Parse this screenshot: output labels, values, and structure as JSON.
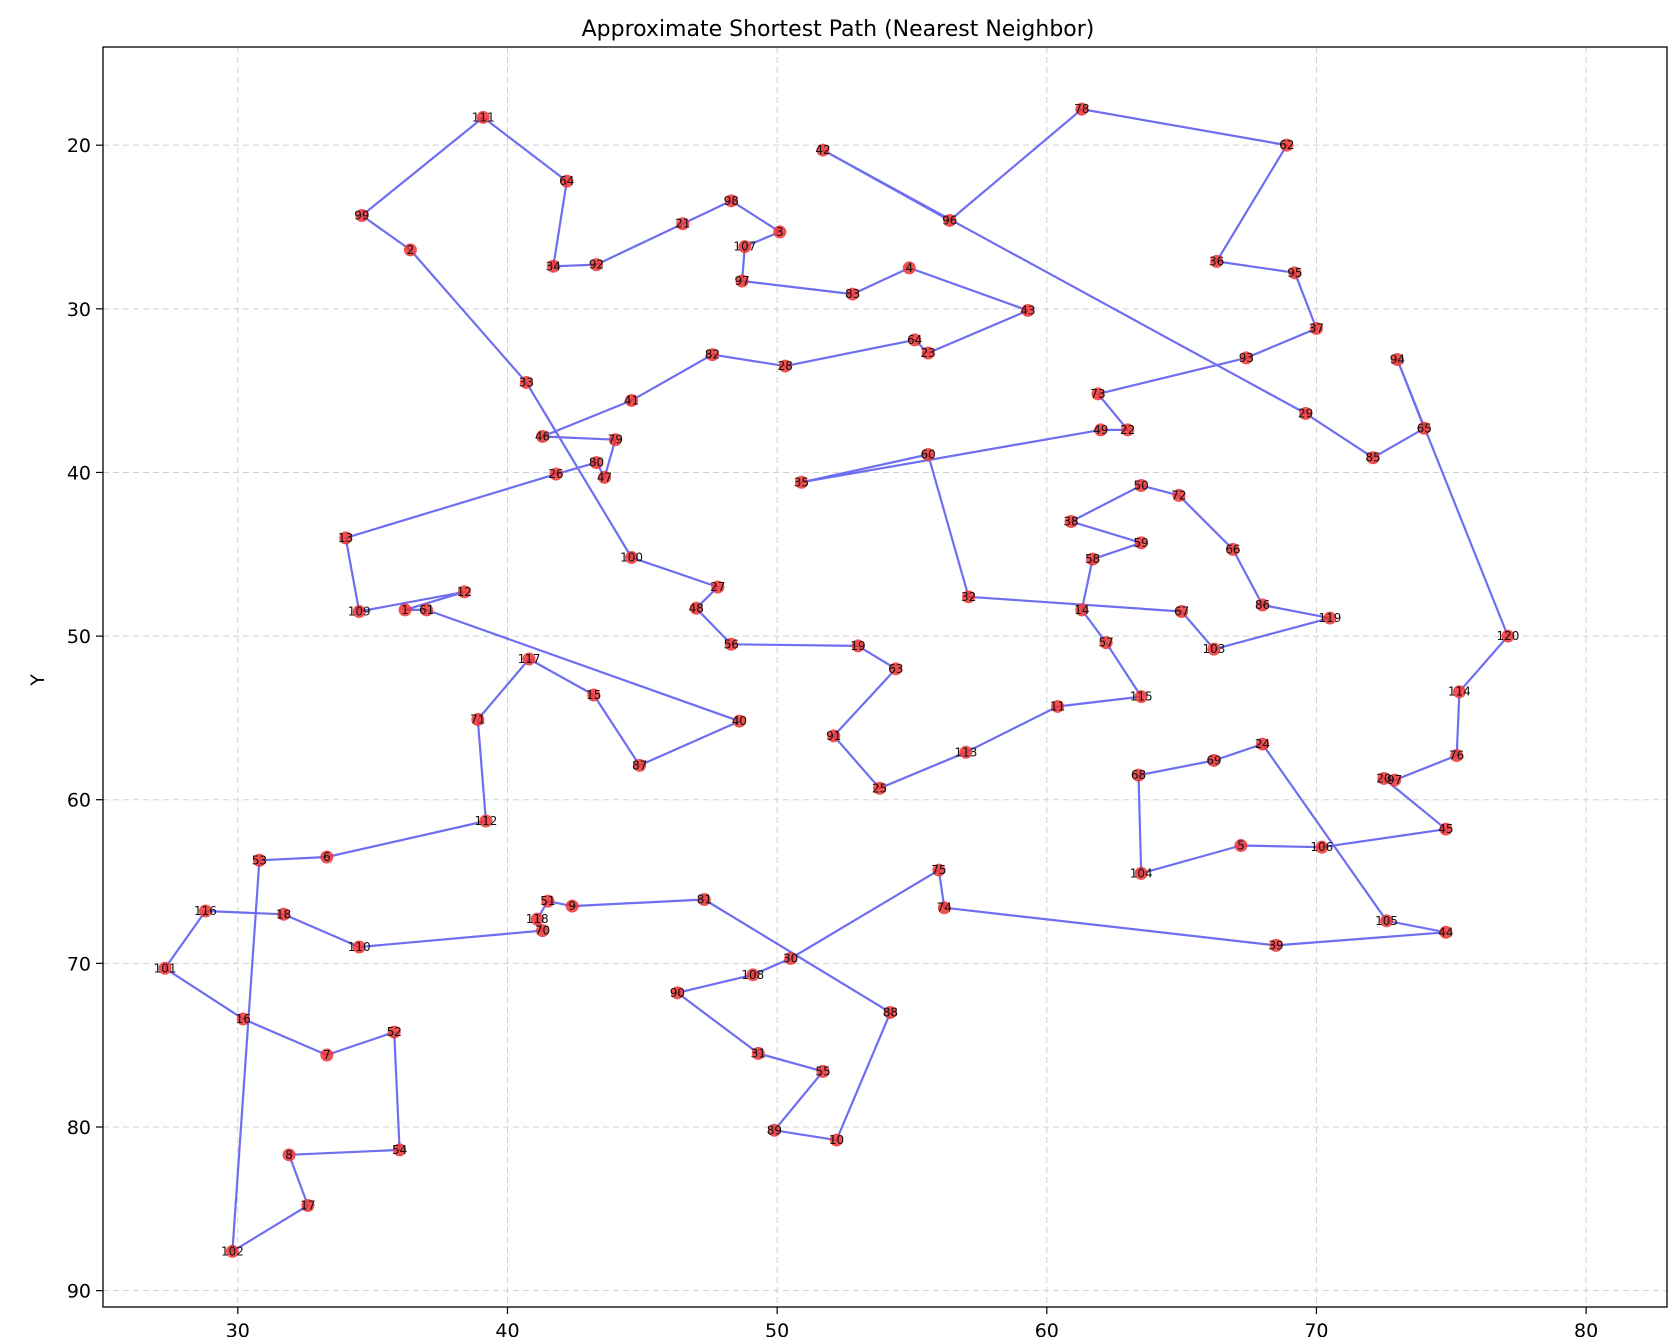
{
  "chart_data": {
    "type": "line",
    "title": "Approximate Shortest Path (Nearest Neighbor)",
    "xlabel": "",
    "ylabel": "Y",
    "xlim": [
      25,
      83
    ],
    "ylim": [
      91,
      14
    ],
    "y_inverted": true,
    "xticks": [
      30,
      40,
      50,
      60,
      70,
      80
    ],
    "yticks": [
      20,
      30,
      40,
      50,
      60,
      70,
      80,
      90
    ],
    "grid": true,
    "colors": {
      "path": "#5555ee",
      "point": "#ee3333",
      "grid": "#d0d0d0"
    },
    "points": [
      {
        "id": 111,
        "x": 39.1,
        "y": 18.3
      },
      {
        "id": 99,
        "x": 34.6,
        "y": 24.3
      },
      {
        "id": 2,
        "x": 36.4,
        "y": 26.4
      },
      {
        "id": 33,
        "x": 40.7,
        "y": 34.5
      },
      {
        "id": 100,
        "x": 44.6,
        "y": 45.2
      },
      {
        "id": 27,
        "x": 47.8,
        "y": 47.0
      },
      {
        "id": 48,
        "x": 47.0,
        "y": 48.3
      },
      {
        "id": 56,
        "x": 48.3,
        "y": 50.5
      },
      {
        "id": 19,
        "x": 53.0,
        "y": 50.6
      },
      {
        "id": 63,
        "x": 54.4,
        "y": 52.0
      },
      {
        "id": 91,
        "x": 52.1,
        "y": 56.1
      },
      {
        "id": 25,
        "x": 53.8,
        "y": 59.3
      },
      {
        "id": 113,
        "x": 57.0,
        "y": 57.1
      },
      {
        "id": 11,
        "x": 60.4,
        "y": 54.3
      },
      {
        "id": 115,
        "x": 63.5,
        "y": 53.7
      },
      {
        "id": 57,
        "x": 62.2,
        "y": 50.4
      },
      {
        "id": 14,
        "x": 61.3,
        "y": 48.4
      },
      {
        "id": 58,
        "x": 61.7,
        "y": 45.3
      },
      {
        "id": 59,
        "x": 63.5,
        "y": 44.3
      },
      {
        "id": 38,
        "x": 60.9,
        "y": 43.0
      },
      {
        "id": 50,
        "x": 63.5,
        "y": 40.8
      },
      {
        "id": 72,
        "x": 64.9,
        "y": 41.4
      },
      {
        "id": 66,
        "x": 66.9,
        "y": 44.7
      },
      {
        "id": 86,
        "x": 68.0,
        "y": 48.1
      },
      {
        "id": 119,
        "x": 70.5,
        "y": 48.9
      },
      {
        "id": 103,
        "x": 66.2,
        "y": 50.8
      },
      {
        "id": 67,
        "x": 65.0,
        "y": 48.5
      },
      {
        "id": 32,
        "x": 57.1,
        "y": 47.6
      },
      {
        "id": 60,
        "x": 55.6,
        "y": 38.9
      },
      {
        "id": 35,
        "x": 50.9,
        "y": 40.6
      },
      {
        "id": 49,
        "x": 62.0,
        "y": 37.4
      },
      {
        "id": 22,
        "x": 63.0,
        "y": 37.4
      },
      {
        "id": 73,
        "x": 61.9,
        "y": 35.2
      },
      {
        "id": 93,
        "x": 67.4,
        "y": 33.0
      },
      {
        "id": 37,
        "x": 70.0,
        "y": 31.2
      },
      {
        "id": 95,
        "x": 69.2,
        "y": 27.8
      },
      {
        "id": 36,
        "x": 66.3,
        "y": 27.1
      },
      {
        "id": 62,
        "x": 68.9,
        "y": 20.0
      },
      {
        "id": 78,
        "x": 61.3,
        "y": 17.8
      },
      {
        "id": 96,
        "x": 56.4,
        "y": 24.6
      },
      {
        "id": 42,
        "x": 51.7,
        "y": 20.3
      },
      {
        "id": 29,
        "x": 69.6,
        "y": 36.4
      },
      {
        "id": 85,
        "x": 72.1,
        "y": 39.1
      },
      {
        "id": 65,
        "x": 74.0,
        "y": 37.3
      },
      {
        "id": 94,
        "x": 73.0,
        "y": 33.1
      },
      {
        "id": 120,
        "x": 77.1,
        "y": 50.0
      },
      {
        "id": 114,
        "x": 75.3,
        "y": 53.4
      },
      {
        "id": 76,
        "x": 75.2,
        "y": 57.3
      },
      {
        "id": 97,
        "x": 72.9,
        "y": 58.8
      },
      {
        "id": 20,
        "x": 72.5,
        "y": 58.7
      },
      {
        "id": 45,
        "x": 74.8,
        "y": 61.8
      },
      {
        "id": 106,
        "x": 70.2,
        "y": 62.9
      },
      {
        "id": 5,
        "x": 67.2,
        "y": 62.8
      },
      {
        "id": 104,
        "x": 63.5,
        "y": 64.5
      },
      {
        "id": 68,
        "x": 63.4,
        "y": 58.5
      },
      {
        "id": 69,
        "x": 66.2,
        "y": 57.6
      },
      {
        "id": 24,
        "x": 68.0,
        "y": 56.6
      },
      {
        "id": 105,
        "x": 72.6,
        "y": 67.4
      },
      {
        "id": 44,
        "x": 74.8,
        "y": 68.1
      },
      {
        "id": 39,
        "x": 68.5,
        "y": 68.9
      },
      {
        "id": 74,
        "x": 56.2,
        "y": 66.6
      },
      {
        "id": 75,
        "x": 56.0,
        "y": 64.3
      },
      {
        "id": 30,
        "x": 50.5,
        "y": 69.7
      },
      {
        "id": 108,
        "x": 49.1,
        "y": 70.7
      },
      {
        "id": 90,
        "x": 46.3,
        "y": 71.8
      },
      {
        "id": 31,
        "x": 49.3,
        "y": 75.5
      },
      {
        "id": 55,
        "x": 51.7,
        "y": 76.6
      },
      {
        "id": 89,
        "x": 49.9,
        "y": 80.2
      },
      {
        "id": 10,
        "x": 52.2,
        "y": 80.8
      },
      {
        "id": 88,
        "x": 54.2,
        "y": 73.0
      },
      {
        "id": 81,
        "x": 47.3,
        "y": 66.1
      },
      {
        "id": 9,
        "x": 42.4,
        "y": 66.5
      },
      {
        "id": 51,
        "x": 41.5,
        "y": 66.2
      },
      {
        "id": 118,
        "x": 41.1,
        "y": 67.3
      },
      {
        "id": 70,
        "x": 41.3,
        "y": 68.0
      },
      {
        "id": 110,
        "x": 34.5,
        "y": 69.0
      },
      {
        "id": 18,
        "x": 31.7,
        "y": 67.0
      },
      {
        "id": 116,
        "x": 28.8,
        "y": 66.8
      },
      {
        "id": 101,
        "x": 27.3,
        "y": 70.3
      },
      {
        "id": 16,
        "x": 30.2,
        "y": 73.4
      },
      {
        "id": 7,
        "x": 33.3,
        "y": 75.6
      },
      {
        "id": 52,
        "x": 35.8,
        "y": 74.2
      },
      {
        "id": 54,
        "x": 36.0,
        "y": 81.4
      },
      {
        "id": 8,
        "x": 31.9,
        "y": 81.7
      },
      {
        "id": 17,
        "x": 32.6,
        "y": 84.8
      },
      {
        "id": 102,
        "x": 29.8,
        "y": 87.6
      },
      {
        "id": 53,
        "x": 30.8,
        "y": 63.7
      },
      {
        "id": 6,
        "x": 33.3,
        "y": 63.5
      },
      {
        "id": 112,
        "x": 39.2,
        "y": 61.3
      },
      {
        "id": 71,
        "x": 38.9,
        "y": 55.1
      },
      {
        "id": 117,
        "x": 40.8,
        "y": 51.4
      },
      {
        "id": 15,
        "x": 43.2,
        "y": 53.6
      },
      {
        "id": 87,
        "x": 44.9,
        "y": 57.9
      },
      {
        "id": 40,
        "x": 48.6,
        "y": 55.2
      },
      {
        "id": 61,
        "x": 37.0,
        "y": 48.4
      },
      {
        "id": 1,
        "x": 36.2,
        "y": 48.4
      },
      {
        "id": 12,
        "x": 38.4,
        "y": 47.3
      },
      {
        "id": 109,
        "x": 34.5,
        "y": 48.5
      },
      {
        "id": 13,
        "x": 34.0,
        "y": 44.0
      },
      {
        "id": 26,
        "x": 41.8,
        "y": 40.1
      },
      {
        "id": 80,
        "x": 43.3,
        "y": 39.4
      },
      {
        "id": 47,
        "x": 43.6,
        "y": 40.3
      },
      {
        "id": 79,
        "x": 44.0,
        "y": 38.0
      },
      {
        "id": 46,
        "x": 41.3,
        "y": 37.8
      },
      {
        "id": 41,
        "x": 44.6,
        "y": 35.6
      },
      {
        "id": 82,
        "x": 47.6,
        "y": 32.8
      },
      {
        "id": 28,
        "x": 50.3,
        "y": 33.5
      },
      {
        "id": 64,
        "x": 55.1,
        "y": 31.9
      },
      {
        "id": 23,
        "x": 55.6,
        "y": 32.7
      },
      {
        "id": 43,
        "x": 59.3,
        "y": 30.1
      },
      {
        "id": 4,
        "x": 54.9,
        "y": 27.5
      },
      {
        "id": 83,
        "x": 52.8,
        "y": 29.1
      },
      {
        "id": 97,
        "x": 48.7,
        "y": 28.3
      },
      {
        "id": 107,
        "x": 48.8,
        "y": 26.2
      },
      {
        "id": 3,
        "x": 50.1,
        "y": 25.3
      },
      {
        "id": 98,
        "x": 48.3,
        "y": 23.4
      },
      {
        "id": 21,
        "x": 46.5,
        "y": 24.8
      },
      {
        "id": 92,
        "x": 43.3,
        "y": 27.3
      },
      {
        "id": 34,
        "x": 41.7,
        "y": 27.4
      },
      {
        "id": 64,
        "x": 42.2,
        "y": 22.2
      },
      {
        "id": 111,
        "x": 39.1,
        "y": 18.3
      }
    ]
  }
}
